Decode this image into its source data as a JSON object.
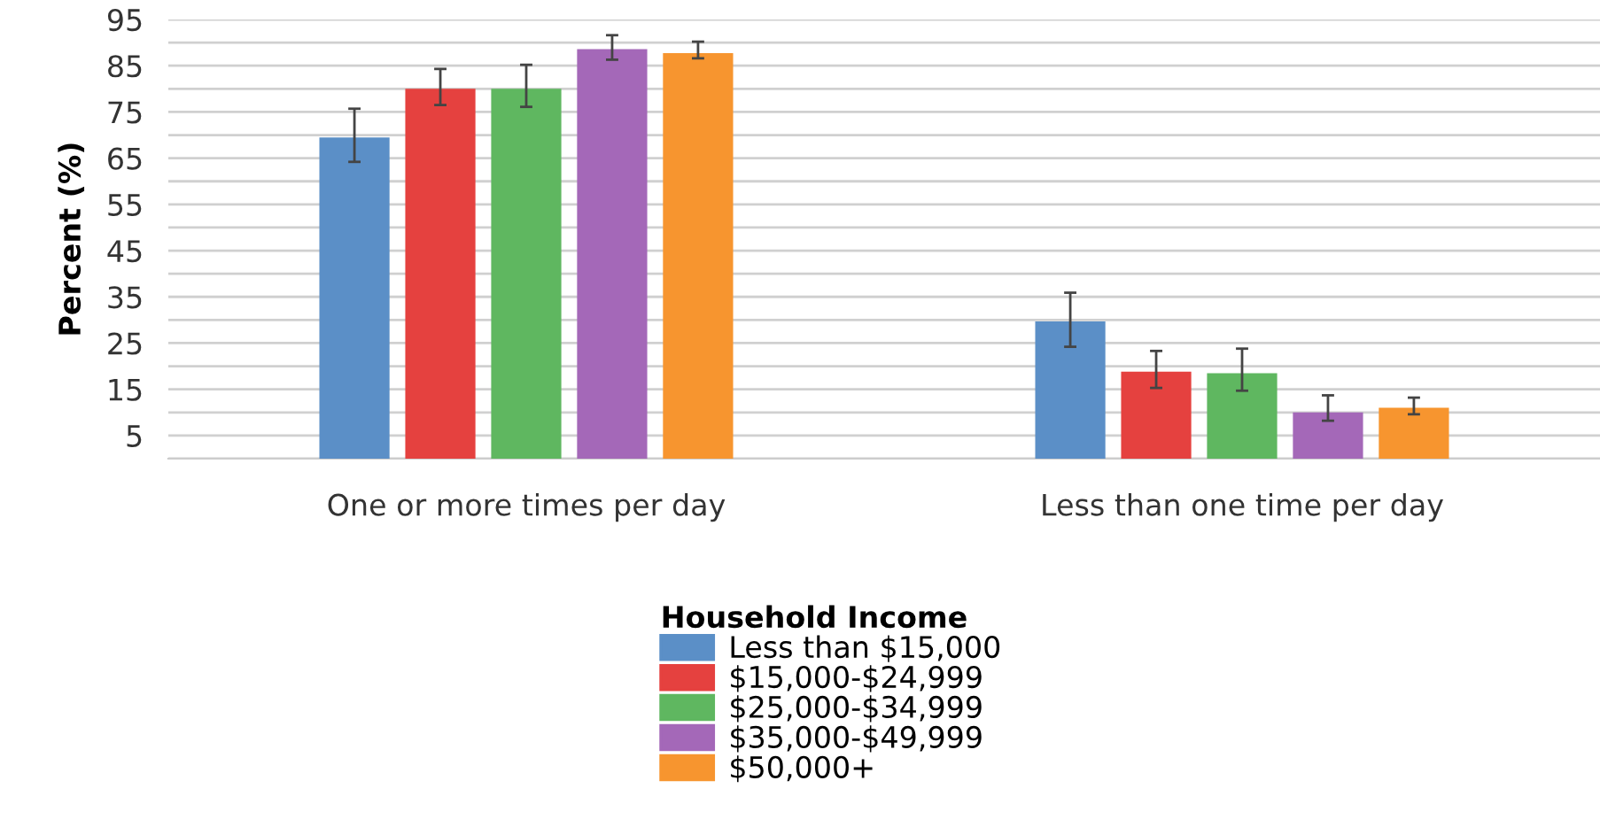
{
  "chart_data": {
    "type": "bar",
    "ylabel": "Percent (%)",
    "legend_title": "Household Income",
    "legend": "bottom",
    "grid": "y",
    "categories": [
      "One or more times per day",
      "Less than one time per day"
    ],
    "ylim": [
      0,
      95
    ],
    "yticks": [
      {
        "value": 0,
        "label": null
      },
      5,
      {
        "value": 10,
        "label": null
      },
      15,
      {
        "value": 20,
        "label": null
      },
      25,
      {
        "value": 30,
        "label": null
      },
      35,
      {
        "value": 40,
        "label": null
      },
      45,
      {
        "value": 50,
        "label": null
      },
      55,
      {
        "value": 60,
        "label": null
      },
      65,
      {
        "value": 70,
        "label": null
      },
      75,
      {
        "value": 80,
        "label": null
      },
      85,
      {
        "value": 90,
        "label": null
      },
      95
    ],
    "series": [
      {
        "name": "Less than $15,000",
        "color": "#5b8fc7",
        "values": [
          69.5,
          29.7
        ],
        "errors": [
          [
            64.2,
            75.7
          ],
          [
            24.2,
            35.9
          ]
        ]
      },
      {
        "name": "$15,000-$24,999",
        "color": "#e5413f",
        "values": [
          80,
          18.8
        ],
        "errors": [
          [
            76.5,
            84.3
          ],
          [
            15.3,
            23.3
          ]
        ]
      },
      {
        "name": "$25,000-$34,999",
        "color": "#5fb760",
        "values": [
          80,
          18.5
        ],
        "errors": [
          [
            76.1,
            85.2
          ],
          [
            14.7,
            23.8
          ]
        ]
      },
      {
        "name": "$35,000-$49,999",
        "color": "#a468b8",
        "values": [
          88.6,
          10
        ],
        "errors": [
          [
            86.3,
            91.6
          ],
          [
            8.2,
            13.7
          ]
        ]
      },
      {
        "name": "$50,000+",
        "color": "#f7952f",
        "values": [
          87.7,
          11
        ],
        "errors": [
          [
            86.6,
            90.2
          ],
          [
            9.6,
            13.2
          ]
        ]
      }
    ]
  }
}
